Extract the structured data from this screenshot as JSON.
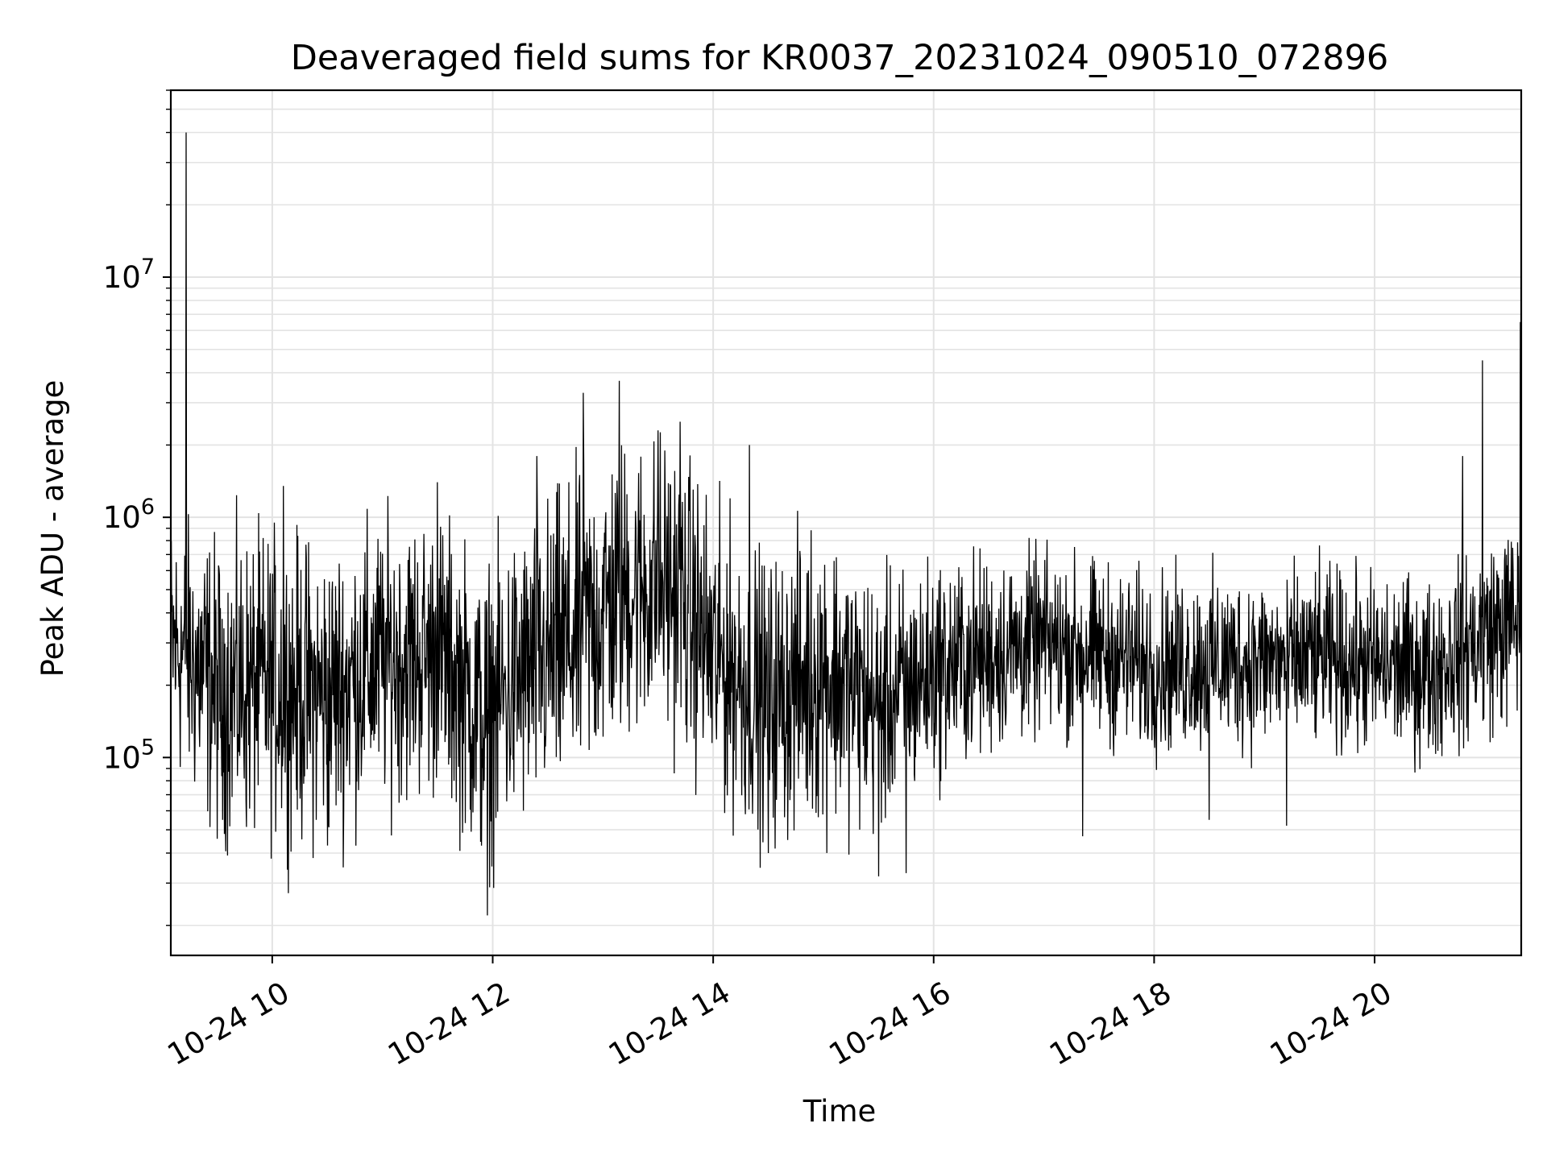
{
  "chart_data": {
    "type": "line",
    "title": "Deaveraged field sums for KR0037_20231024_090510_072896",
    "xlabel": "Time",
    "ylabel": "Peak ADU - average",
    "yscale": "log",
    "grid": true,
    "x_range_hours": [
      9.08,
      21.33
    ],
    "ylim": [
      15000,
      60000000
    ],
    "x_ticks": [
      {
        "hour": 10,
        "label": "10-24 10"
      },
      {
        "hour": 12,
        "label": "10-24 12"
      },
      {
        "hour": 14,
        "label": "10-24 14"
      },
      {
        "hour": 16,
        "label": "10-24 16"
      },
      {
        "hour": 18,
        "label": "10-24 18"
      },
      {
        "hour": 20,
        "label": "10-24 20"
      }
    ],
    "y_ticks": [
      {
        "value": 100000,
        "base": "10",
        "exp": "5"
      },
      {
        "value": 1000000,
        "base": "10",
        "exp": "6"
      },
      {
        "value": 10000000,
        "base": "10",
        "exp": "7"
      }
    ],
    "series": [
      {
        "color": "#000000",
        "envelope": [
          {
            "hour": 9.08,
            "typical": 300000,
            "spread": 0.25
          },
          {
            "hour": 9.5,
            "typical": 190000,
            "spread": 0.3
          },
          {
            "hour": 10.0,
            "typical": 200000,
            "spread": 0.3
          },
          {
            "hour": 10.5,
            "typical": 180000,
            "spread": 0.3
          },
          {
            "hour": 11.0,
            "typical": 250000,
            "spread": 0.28
          },
          {
            "hour": 11.5,
            "typical": 270000,
            "spread": 0.28
          },
          {
            "hour": 11.9,
            "typical": 140000,
            "spread": 0.3
          },
          {
            "hour": 12.3,
            "typical": 220000,
            "spread": 0.3
          },
          {
            "hour": 12.8,
            "typical": 320000,
            "spread": 0.32
          },
          {
            "hour": 13.2,
            "typical": 500000,
            "spread": 0.3
          },
          {
            "hour": 13.6,
            "typical": 520000,
            "spread": 0.3
          },
          {
            "hour": 14.0,
            "typical": 260000,
            "spread": 0.3
          },
          {
            "hour": 14.5,
            "typical": 170000,
            "spread": 0.28
          },
          {
            "hour": 15.0,
            "typical": 230000,
            "spread": 0.3
          },
          {
            "hour": 15.5,
            "typical": 160000,
            "spread": 0.25
          },
          {
            "hour": 16.0,
            "typical": 230000,
            "spread": 0.22
          },
          {
            "hour": 16.5,
            "typical": 270000,
            "spread": 0.2
          },
          {
            "hour": 17.0,
            "typical": 300000,
            "spread": 0.18
          },
          {
            "hour": 17.5,
            "typical": 270000,
            "spread": 0.18
          },
          {
            "hour": 18.0,
            "typical": 240000,
            "spread": 0.18
          },
          {
            "hour": 18.5,
            "typical": 250000,
            "spread": 0.18
          },
          {
            "hour": 19.0,
            "typical": 250000,
            "spread": 0.18
          },
          {
            "hour": 19.5,
            "typical": 260000,
            "spread": 0.18
          },
          {
            "hour": 20.0,
            "typical": 240000,
            "spread": 0.18
          },
          {
            "hour": 20.5,
            "typical": 230000,
            "spread": 0.18
          },
          {
            "hour": 20.9,
            "typical": 300000,
            "spread": 0.2
          },
          {
            "hour": 21.33,
            "typical": 380000,
            "spread": 0.2
          }
        ],
        "spikes": [
          {
            "hour": 9.22,
            "value": 40000000
          },
          {
            "hour": 9.55,
            "value": 55000
          },
          {
            "hour": 10.1,
            "value": 1350000
          },
          {
            "hour": 10.5,
            "value": 43000
          },
          {
            "hour": 11.5,
            "value": 1400000
          },
          {
            "hour": 11.95,
            "value": 22000
          },
          {
            "hour": 12.4,
            "value": 1800000
          },
          {
            "hour": 12.82,
            "value": 3300000
          },
          {
            "hour": 13.15,
            "value": 3700000
          },
          {
            "hour": 13.5,
            "value": 2300000
          },
          {
            "hour": 13.7,
            "value": 2500000
          },
          {
            "hour": 14.33,
            "value": 2000000
          },
          {
            "hour": 14.5,
            "value": 40000
          },
          {
            "hour": 15.5,
            "value": 32000
          },
          {
            "hour": 15.75,
            "value": 33000
          },
          {
            "hour": 17.35,
            "value": 47000
          },
          {
            "hour": 18.5,
            "value": 55000
          },
          {
            "hour": 19.2,
            "value": 52000
          },
          {
            "hour": 20.8,
            "value": 1800000
          },
          {
            "hour": 20.98,
            "value": 4500000
          },
          {
            "hour": 21.32,
            "value": 6500000
          }
        ]
      }
    ]
  }
}
